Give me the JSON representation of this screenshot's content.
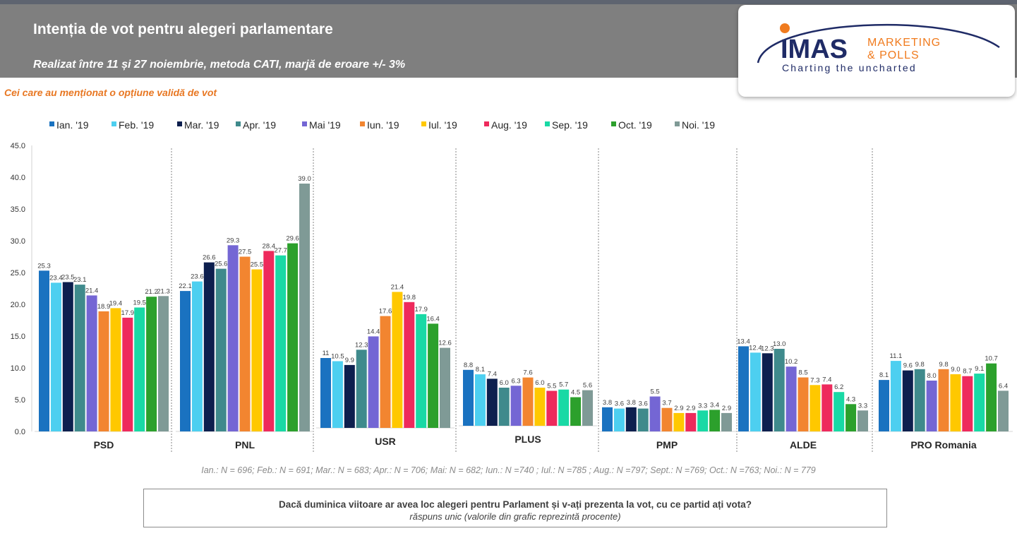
{
  "header": {
    "title": "Intenția de vot pentru alegeri parlamentare",
    "subtitle": "Realizat între 11 și 27 noiembrie, metoda CATI, marjă de eroare +/- 3%"
  },
  "logo": {
    "brand": "IMAS",
    "line1": "MARKETING",
    "line2": "& POLLS",
    "tagline": "Charting the uncharted"
  },
  "note": "Cei care au menționat o opțiune validă de vot",
  "footnote": "Ian.: N = 696;  Feb.: N = 691;  Mar.: N = 683; Apr.: N = 706; Mai: N = 682; Iun.: N =740 ; Iul.: N =785 ; Aug.: N =797; Sept.: N =769; Oct.: N =763; Noi.: N = 779",
  "question_box": {
    "question": "Dacă duminica viitoare ar avea loc alegeri pentru Parlament și v-ați prezenta la vot, cu ce partid ați vota?",
    "answer": "răspuns unic (valorile din grafic reprezintă procente)"
  },
  "chart_data": {
    "type": "bar",
    "categories": [
      "PSD",
      "PNL",
      "USR",
      "PLUS",
      "PMP",
      "ALDE",
      "PRO Romania"
    ],
    "yticks": [
      "0.0",
      "5.0",
      "10.0",
      "15.0",
      "20.0",
      "25.0",
      "30.0",
      "35.0",
      "40.0",
      "45.0"
    ],
    "ylim": [
      0,
      45
    ],
    "legend_position": "top",
    "series": [
      {
        "name": "Ian. '19",
        "color": "#1a72c0",
        "values": [
          25.3,
          22.1,
          11,
          8.8,
          3.8,
          13.4,
          8.1
        ],
        "labels": [
          "25.3",
          "22.1",
          "11",
          "8.8",
          "3.8",
          "13.4",
          "8.1"
        ]
      },
      {
        "name": "Feb. '19",
        "color": "#4dcff0",
        "values": [
          23.4,
          23.6,
          10.5,
          8.1,
          3.6,
          12.4,
          11.1
        ],
        "labels": [
          "23.4",
          "23.6",
          "10.5",
          "8.1",
          "3.6",
          "12.4",
          "11.1"
        ]
      },
      {
        "name": "Mar. '19",
        "color": "#0d1f4e",
        "values": [
          23.5,
          26.6,
          9.9,
          7.4,
          3.8,
          12.3,
          9.6
        ],
        "labels": [
          "23.5",
          "26.6",
          "9.9",
          "7.4",
          "3.8",
          "12.3",
          "9.6"
        ]
      },
      {
        "name": "Apr. '19",
        "color": "#3f8a8c",
        "values": [
          23.1,
          25.6,
          12.3,
          6.0,
          3.6,
          13.0,
          9.8
        ],
        "labels": [
          "23.1",
          "25.6",
          "12.3",
          "6.0",
          "3.6",
          "13.0",
          "9.8"
        ]
      },
      {
        "name": "Mai '19",
        "color": "#7466d4",
        "values": [
          21.4,
          29.3,
          14.4,
          6.3,
          5.5,
          10.2,
          8.0
        ],
        "labels": [
          "21.4",
          "29.3",
          "14.4",
          "6.3",
          "5.5",
          "10.2",
          "8.0"
        ]
      },
      {
        "name": "Iun. '19",
        "color": "#f28530",
        "values": [
          18.9,
          27.5,
          17.6,
          7.6,
          3.7,
          8.5,
          9.8
        ],
        "labels": [
          "18.9",
          "27.5",
          "17.6",
          "7.6",
          "3.7",
          "8.5",
          "9.8"
        ]
      },
      {
        "name": "Iul. '19",
        "color": "#ffc800",
        "values": [
          19.4,
          25.5,
          21.4,
          6.0,
          2.9,
          7.3,
          9.0
        ],
        "labels": [
          "19.4",
          "25.5",
          "21.4",
          "6.0",
          "2.9",
          "7.3",
          "9.0"
        ]
      },
      {
        "name": "Aug. '19",
        "color": "#ee2a5c",
        "values": [
          17.9,
          28.4,
          19.8,
          5.5,
          2.9,
          7.4,
          8.7
        ],
        "labels": [
          "17.9",
          "28.4",
          "19.8",
          "5.5",
          "2.9",
          "7.4",
          "8.7"
        ]
      },
      {
        "name": "Sep. '19",
        "color": "#19d9a5",
        "values": [
          19.5,
          27.7,
          17.9,
          5.7,
          3.3,
          6.2,
          9.1
        ],
        "labels": [
          "19.5",
          "27.7",
          "17.9",
          "5.7",
          "3.3",
          "6.2",
          "9.1"
        ]
      },
      {
        "name": "Oct. '19",
        "color": "#2ca02c",
        "values": [
          21.2,
          29.6,
          16.4,
          4.5,
          3.4,
          4.3,
          10.7
        ],
        "labels": [
          "21.2",
          "29.6",
          "16.4",
          "4.5",
          "3.4",
          "4.3",
          "10.7"
        ]
      },
      {
        "name": "Noi. '19",
        "color": "#7f9a96",
        "values": [
          21.3,
          39.0,
          12.6,
          5.6,
          2.9,
          3.3,
          6.4
        ],
        "labels": [
          "21.3",
          "39.0",
          "12.6",
          "5.6",
          "2.9",
          "3.3",
          "6.4"
        ]
      }
    ]
  }
}
